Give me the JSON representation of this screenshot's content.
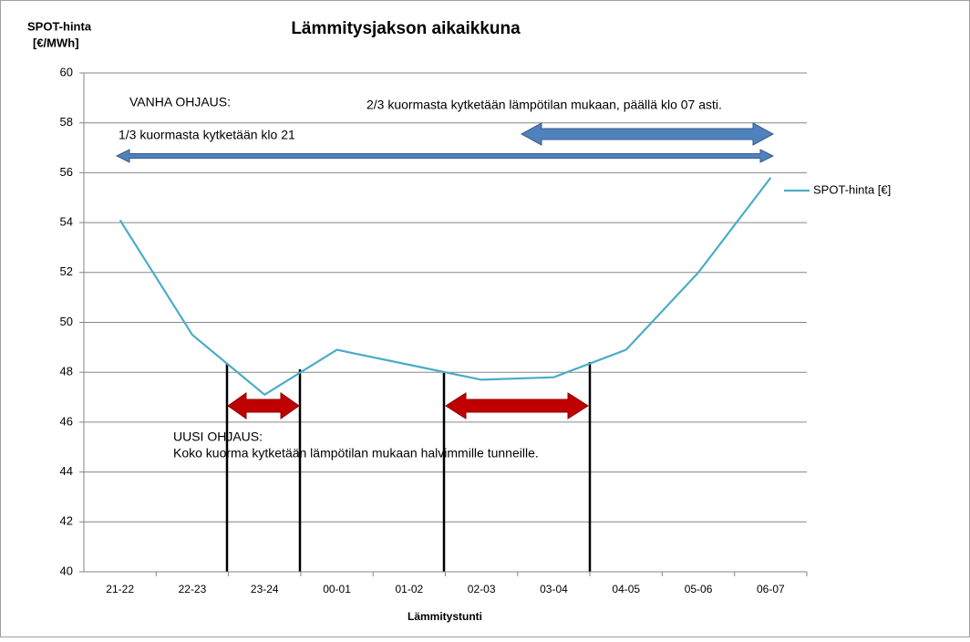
{
  "chart_data": {
    "type": "line",
    "title": "Lämmitysjakson aikaikkuna",
    "y_label": [
      "SPOT-hinta",
      "[€/MWh]"
    ],
    "x_label": "Lämmitystunti",
    "categories": [
      "21-22",
      "22-23",
      "23-24",
      "00-01",
      "01-02",
      "02-03",
      "03-04",
      "04-05",
      "05-06",
      "06-07"
    ],
    "series": [
      {
        "name": "SPOT-hinta [€]",
        "color": "#4bacc6",
        "values": [
          54.1,
          49.5,
          47.1,
          48.9,
          48.3,
          47.7,
          47.8,
          48.9,
          52.0,
          55.8
        ]
      }
    ],
    "ylim": [
      40,
      60
    ],
    "yticks": [
      40,
      42,
      44,
      46,
      48,
      50,
      52,
      54,
      56,
      58,
      60
    ],
    "grid": true,
    "legend": "right",
    "annotations": [
      "VANHA OHJAUS:",
      "2/3 kuormasta kytketään lämpötilan mukaan, päällä klo 07 asti.",
      "1/3 kuormasta kytketään klo 21",
      "UUSI OHJAUS:",
      "Koko kuorma kytketään lämpötilan mukaan halvimmille tunneille."
    ]
  }
}
